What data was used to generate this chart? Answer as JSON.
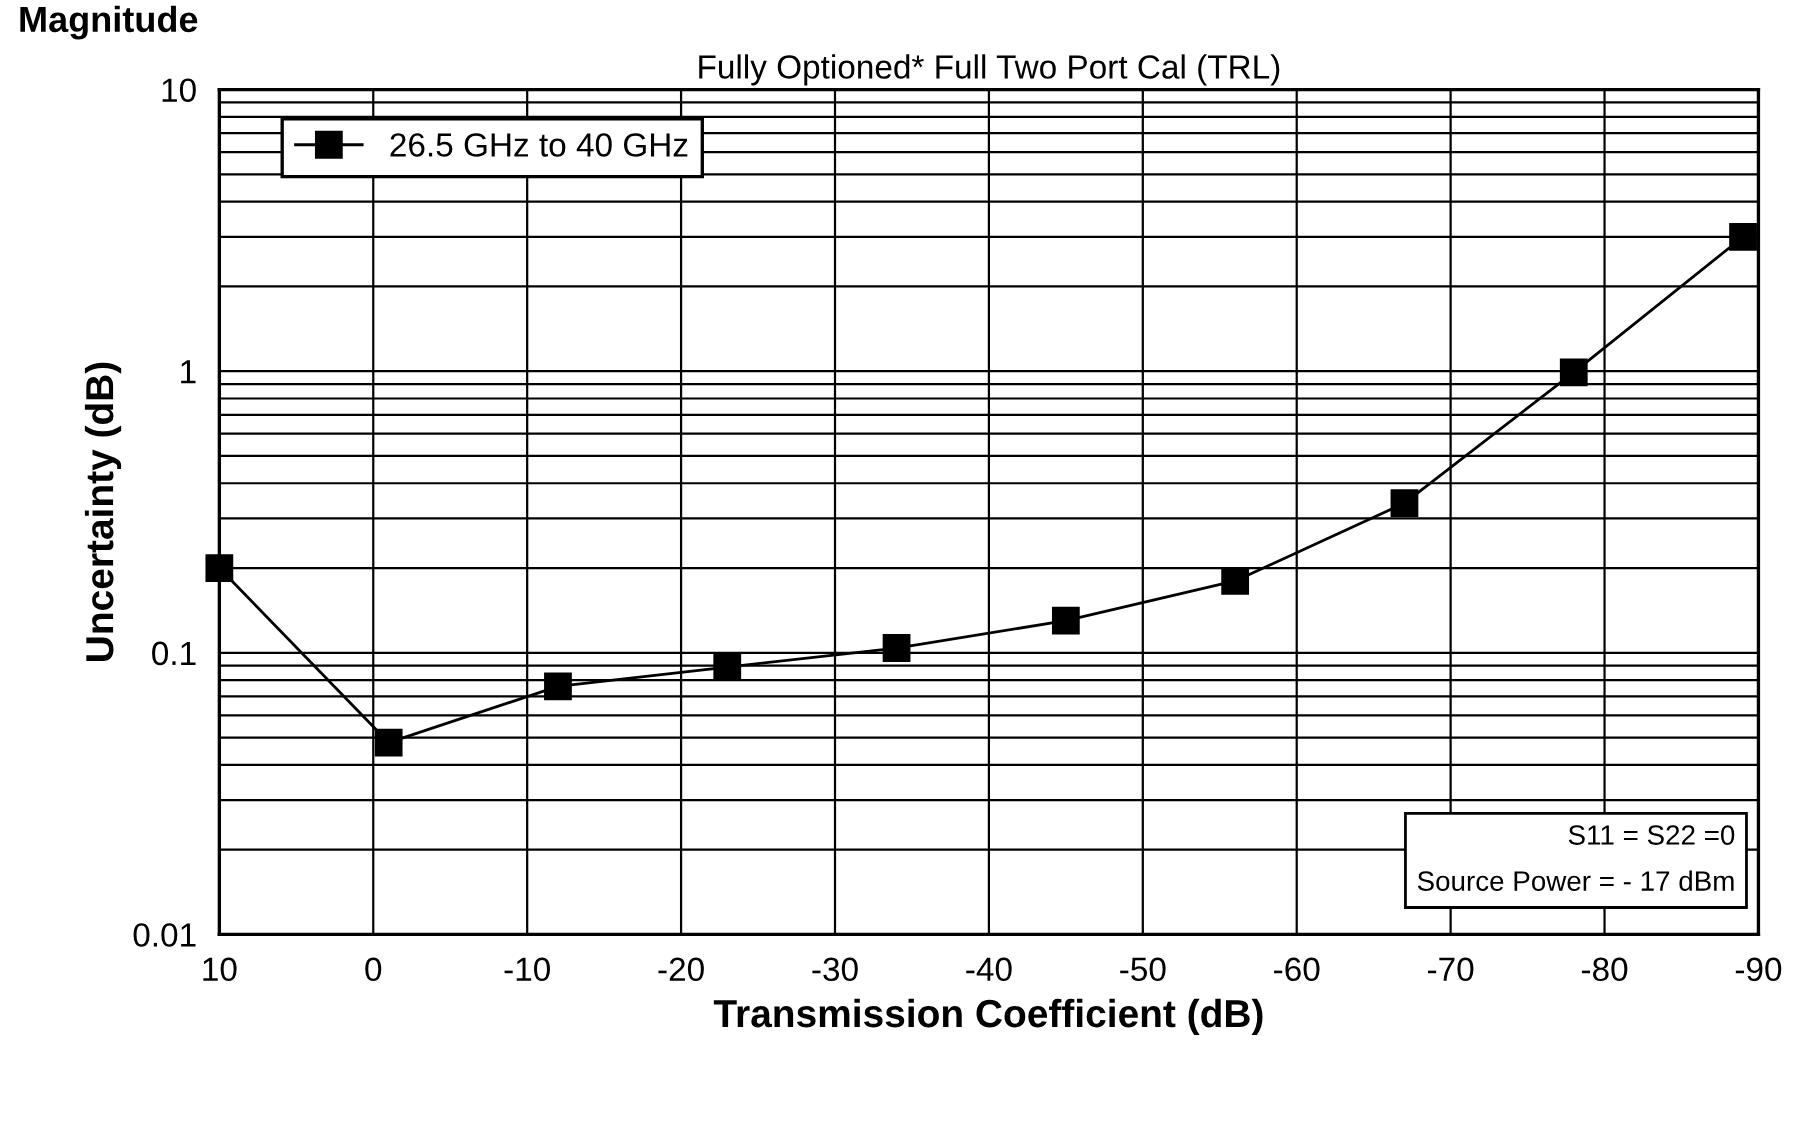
{
  "chart_data": {
    "type": "line",
    "title": "Fully Optioned* Full Two Port Cal (TRL)",
    "xlabel": "Transmission Coefficient (dB)",
    "ylabel": "Uncertainty (dB)",
    "x": [
      10,
      -1,
      -12,
      -23,
      -34,
      -45,
      -56,
      -67,
      -78,
      -89
    ],
    "series": [
      {
        "name": "26.5 GHz to 40 GHz",
        "color": "#000000",
        "values": [
          0.2,
          0.048,
          0.076,
          0.089,
          0.104,
          0.13,
          0.18,
          0.34,
          0.99,
          3.0
        ]
      }
    ],
    "xlim": [
      10,
      -90
    ],
    "xticks": [
      10,
      0,
      -10,
      -20,
      -30,
      -40,
      -50,
      -60,
      -70,
      -80,
      -90
    ],
    "log": "y",
    "ylim": [
      0.01,
      10
    ],
    "yticks": [
      0.01,
      0.1,
      1,
      10
    ],
    "grid": true,
    "legend": "top left",
    "marker": "square",
    "line_style": "solid",
    "annotations": [
      "Magnitude",
      "S11 = S22 =0\nSource Power = - 17 dBm"
    ]
  }
}
